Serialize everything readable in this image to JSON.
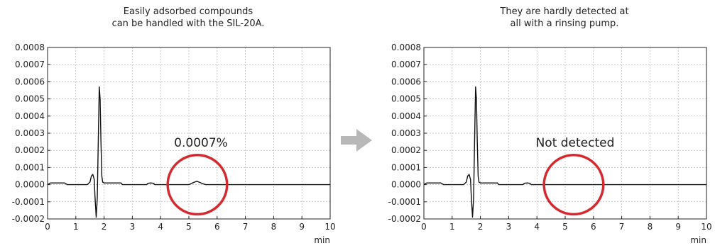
{
  "colors": {
    "trace": "#111111",
    "circle": "#d42a2f",
    "grid": "#b5b5b5",
    "arrow": "#b8b8b8"
  },
  "arrow_icon": "right-arrow-icon",
  "chart_data": [
    {
      "type": "line",
      "title_lines": [
        "Easily adsorbed compounds",
        "can be handled with the SIL-20A."
      ],
      "xlabel": "min",
      "ylabel": "",
      "xlim": [
        0,
        10
      ],
      "ylim": [
        -0.0002,
        0.0008
      ],
      "xticks": [
        "0",
        "1",
        "2",
        "3",
        "4",
        "5",
        "6",
        "7",
        "8",
        "9",
        "10"
      ],
      "yticks": [
        "-0.0002",
        "-0.0001",
        "0.0000",
        "0.0001",
        "0.0002",
        "0.0003",
        "0.0004",
        "0.0005",
        "0.0006",
        "0.0007",
        "0.0008"
      ],
      "grid": true,
      "annotation": "0.0007%",
      "highlight_circle": {
        "x_center": 5.3,
        "y_center": 0.0,
        "x_radius": 1.05
      },
      "series": [
        {
          "x": [
            0,
            0.1,
            0.2,
            0.3,
            0.6,
            0.7,
            1.4,
            1.5,
            1.55,
            1.6,
            1.65,
            1.68,
            1.72,
            1.76,
            1.8,
            1.83,
            1.86,
            1.89,
            1.92,
            1.95,
            2.0,
            2.05,
            2.2,
            2.6,
            2.65,
            2.75,
            2.8,
            3.5,
            3.55,
            3.65,
            3.75,
            3.8,
            4.0,
            5.0,
            5.1,
            5.2,
            5.28,
            5.36,
            5.5,
            5.6,
            6.0,
            7.0,
            8.0,
            9.0,
            10.0
          ],
          "y": [
            0.0,
            1e-05,
            1e-05,
            1e-05,
            1e-05,
            0.0,
            0.0,
            1.5e-05,
            5e-05,
            6e-05,
            3e-05,
            -8e-05,
            -0.00019,
            -8e-05,
            0.0003,
            0.00057,
            0.0005,
            0.00025,
            5e-05,
            1.5e-05,
            1e-05,
            1e-05,
            1e-05,
            1e-05,
            0.0,
            0.0,
            0.0,
            0.0,
            8e-06,
            1e-05,
            8e-06,
            0.0,
            0.0,
            0.0,
            8e-06,
            1.5e-05,
            2e-05,
            1.5e-05,
            5e-06,
            0.0,
            0.0,
            0.0,
            0.0,
            0.0,
            0.0
          ]
        }
      ]
    },
    {
      "type": "line",
      "title_lines": [
        "They are hardly detected at",
        "all with a rinsing pump."
      ],
      "xlabel": "min",
      "ylabel": "",
      "xlim": [
        0,
        10
      ],
      "ylim": [
        -0.0002,
        0.0008
      ],
      "xticks": [
        "0",
        "1",
        "2",
        "3",
        "4",
        "5",
        "6",
        "7",
        "8",
        "9",
        "10"
      ],
      "yticks": [
        "-0.0002",
        "-0.0001",
        "0.0000",
        "0.0001",
        "0.0002",
        "0.0003",
        "0.0004",
        "0.0005",
        "0.0006",
        "0.0007",
        "0.0008"
      ],
      "grid": true,
      "annotation": "Not detected",
      "highlight_circle": {
        "x_center": 5.3,
        "y_center": 0.0,
        "x_radius": 1.05
      },
      "series": [
        {
          "x": [
            0,
            0.1,
            0.2,
            0.3,
            0.6,
            0.7,
            1.4,
            1.5,
            1.55,
            1.6,
            1.65,
            1.68,
            1.72,
            1.76,
            1.8,
            1.83,
            1.86,
            1.89,
            1.92,
            1.95,
            2.0,
            2.05,
            2.2,
            2.6,
            2.65,
            2.75,
            2.8,
            3.5,
            3.55,
            3.65,
            3.75,
            3.8,
            4.0,
            5.0,
            6.0,
            7.0,
            8.0,
            9.0,
            10.0
          ],
          "y": [
            0.0,
            1e-05,
            1e-05,
            1e-05,
            1e-05,
            0.0,
            0.0,
            1.5e-05,
            5e-05,
            6e-05,
            3e-05,
            -8e-05,
            -0.00019,
            -8e-05,
            0.0003,
            0.00057,
            0.0005,
            0.00025,
            5e-05,
            1.5e-05,
            1e-05,
            1e-05,
            1e-05,
            1e-05,
            0.0,
            0.0,
            0.0,
            0.0,
            8e-06,
            1e-05,
            8e-06,
            0.0,
            0.0,
            0.0,
            0.0,
            0.0,
            0.0,
            0.0,
            0.0
          ]
        }
      ]
    }
  ]
}
